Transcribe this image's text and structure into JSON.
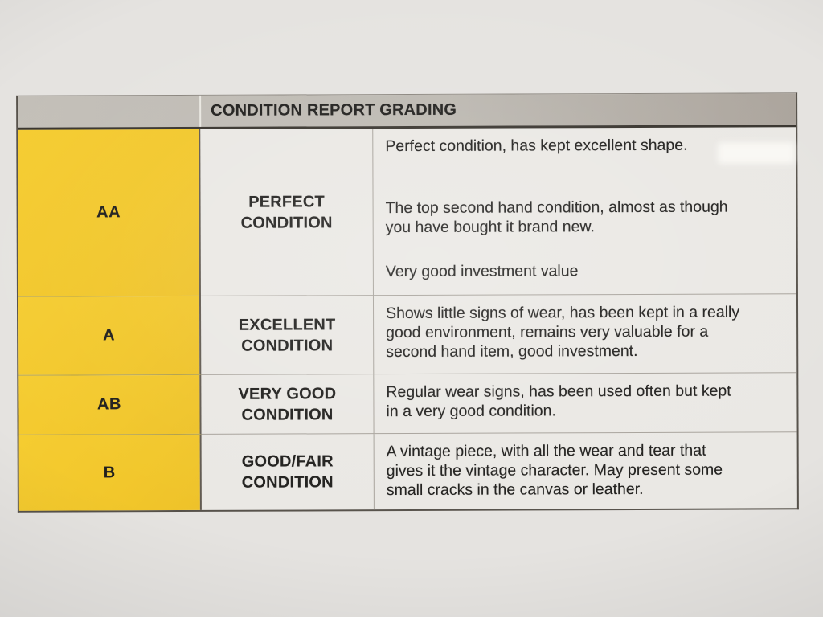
{
  "document": {
    "title": "CONDITION REPORT GRADING",
    "rows": [
      {
        "grade": "AA",
        "condition_lines": [
          "PERFECT",
          "CONDITION"
        ],
        "description_paragraphs": [
          [
            "Perfect condition, has kept excellent shape."
          ],
          [
            "The top second hand condition, almost as though",
            "you have bought it brand new."
          ],
          [
            "Very good investment value"
          ]
        ]
      },
      {
        "grade": "A",
        "condition_lines": [
          "EXCELLENT",
          "CONDITION"
        ],
        "description_paragraphs": [
          [
            "Shows little signs of wear, has been kept in a really",
            "good environment, remains very valuable for a",
            "second hand item, good investment."
          ]
        ]
      },
      {
        "grade": "AB",
        "condition_lines": [
          "VERY GOOD",
          "CONDITION"
        ],
        "description_paragraphs": [
          [
            "Regular wear signs, has been used often but kept",
            "in a very good condition."
          ]
        ]
      },
      {
        "grade": "B",
        "condition_lines": [
          "GOOD/FAIR",
          "CONDITION"
        ],
        "description_paragraphs": [
          [
            "A vintage piece, with all the wear and tear that",
            "gives it the vintage character. May present some",
            "small cracks in the canvas or leather."
          ]
        ]
      }
    ],
    "colors": {
      "grade_column_bg": "#f2c72b",
      "header_bg": "#bcb8b1",
      "table_bg": "#eae8e4",
      "paper_bg": "#e5e3e0",
      "border_dark": "#56514a",
      "grid_line": "#a7a29b",
      "text": "#201f1d"
    }
  }
}
